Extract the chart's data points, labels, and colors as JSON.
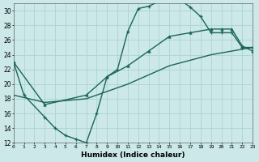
{
  "xlabel": "Humidex (Indice chaleur)",
  "bg_color": "#cce8e8",
  "grid_color": "#aad4d4",
  "line_color": "#1a6655",
  "xlim": [
    0,
    23
  ],
  "ylim": [
    12,
    31
  ],
  "xticks": [
    0,
    1,
    2,
    3,
    4,
    5,
    6,
    7,
    8,
    9,
    10,
    11,
    12,
    13,
    14,
    15,
    16,
    17,
    18,
    19,
    20,
    21,
    22,
    23
  ],
  "yticks": [
    12,
    14,
    16,
    18,
    20,
    22,
    24,
    26,
    28,
    30
  ],
  "curve1_x": [
    0,
    1,
    3,
    4,
    5,
    6,
    7,
    8,
    9,
    10,
    11,
    12,
    13,
    14,
    15,
    16,
    17,
    18,
    19,
    20,
    21,
    22,
    23
  ],
  "curve1_y": [
    23,
    18.5,
    15.5,
    14,
    13,
    12.5,
    12,
    16,
    21,
    22,
    27.2,
    30.3,
    30.6,
    31.3,
    31.5,
    31.5,
    30.5,
    29.2,
    27,
    27,
    27,
    25,
    25
  ],
  "curve2_x": [
    0,
    3,
    7,
    9,
    11,
    13,
    15,
    17,
    19,
    20,
    21,
    22,
    23
  ],
  "curve2_y": [
    23,
    17.2,
    18.5,
    21,
    22.5,
    24.5,
    26.5,
    27,
    27.5,
    27.5,
    27.5,
    25.2,
    24.5
  ],
  "curve3_x": [
    0,
    3,
    7,
    11,
    15,
    19,
    23
  ],
  "curve3_y": [
    18.5,
    17.5,
    18,
    20,
    22.5,
    24,
    25
  ]
}
